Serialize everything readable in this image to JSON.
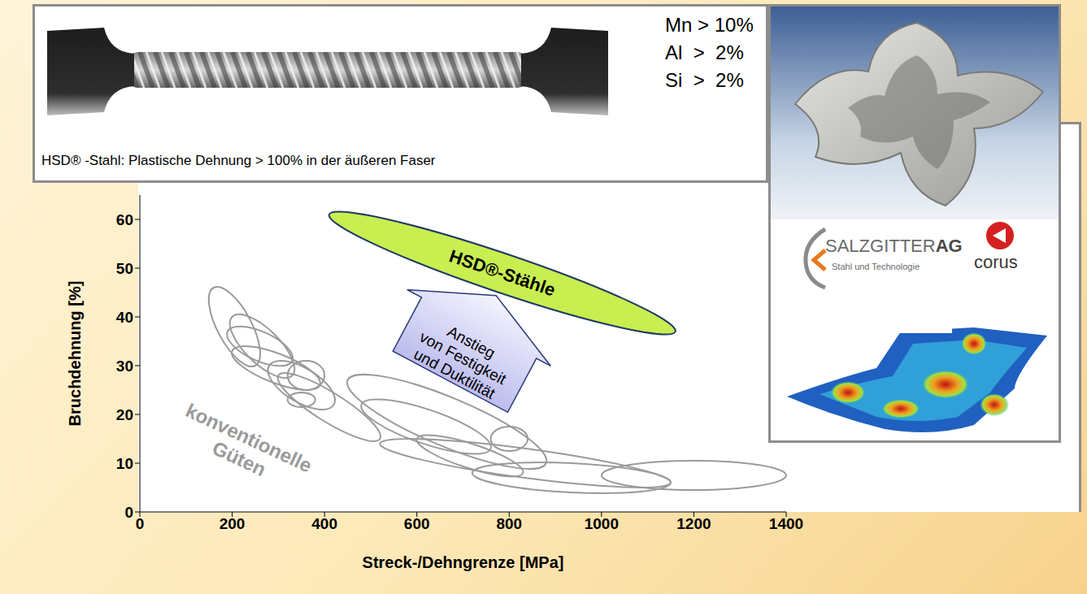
{
  "chart_data": {
    "type": "ellipse",
    "x_label": "Streck-/Dehngrenze [MPa]",
    "y_label": "Bruchdehnung [%]",
    "xlim": [
      0,
      1400
    ],
    "xticks": [
      0,
      200,
      400,
      600,
      800,
      1000,
      1200,
      1400
    ],
    "ylim": [
      0,
      65
    ],
    "yticks": [
      0,
      10,
      20,
      30,
      40,
      50,
      60
    ],
    "grid": false,
    "series": [
      {
        "name": "konventionelle Güten",
        "color": "#9a9a9a",
        "regions": [
          {
            "from": [
              160,
              46
            ],
            "to": [
              250,
              30
            ],
            "spread": 7
          },
          {
            "from": [
              200,
              40
            ],
            "to": [
              330,
              28
            ],
            "spread": 7
          },
          {
            "from": [
              190,
              37
            ],
            "to": [
              330,
              31
            ],
            "spread": 6
          },
          {
            "from": [
              200,
              33
            ],
            "to": [
              390,
              26
            ],
            "spread": 6
          },
          {
            "from": [
              280,
              30
            ],
            "to": [
              420,
              22
            ],
            "spread": 7
          },
          {
            "from": [
              320,
              28
            ],
            "to": [
              400,
              28
            ],
            "spread": 6
          },
          {
            "from": [
              320,
              23
            ],
            "to": [
              380,
              23
            ],
            "spread": 3
          },
          {
            "from": [
              300,
              28
            ],
            "to": [
              520,
              15
            ],
            "spread": 6
          },
          {
            "from": [
              450,
              27
            ],
            "to": [
              880,
              10
            ],
            "spread": 10
          },
          {
            "from": [
              480,
              22
            ],
            "to": [
              760,
              13
            ],
            "spread": 7
          },
          {
            "from": [
              760,
              15
            ],
            "to": [
              840,
              15
            ],
            "spread": 5
          },
          {
            "from": [
              600,
              15
            ],
            "to": [
              830,
              8
            ],
            "spread": 5
          },
          {
            "from": [
              520,
              14
            ],
            "to": [
              1150,
              6
            ],
            "spread": 6
          },
          {
            "from": [
              720,
              8
            ],
            "to": [
              1150,
              6
            ],
            "spread": 6
          },
          {
            "from": [
              1000,
              7.5
            ],
            "to": [
              1400,
              7.5
            ],
            "spread": 6
          }
        ]
      },
      {
        "name": "HSD®-Stähle",
        "color": "#c8ee50",
        "regions": [
          {
            "from": [
              410,
              61
            ],
            "to": [
              1160,
              37
            ],
            "spread": 8
          }
        ]
      }
    ],
    "annotations": [
      "Anstieg",
      "von Festigkeit",
      "und Duktilität"
    ]
  },
  "specimen": {
    "caption": "HSD® -Stahl: Plastische Dehnung > 100% in der äußeren Faser",
    "composition": [
      "Mn > 10%",
      "Al  >  2%",
      "Si  >  2%"
    ]
  },
  "logos": {
    "salzgitter": "SALZGITTER",
    "salzgitter_suffix": "AG",
    "salzgitter_tagline": "Stahl und Technologie",
    "corus": "corus"
  }
}
